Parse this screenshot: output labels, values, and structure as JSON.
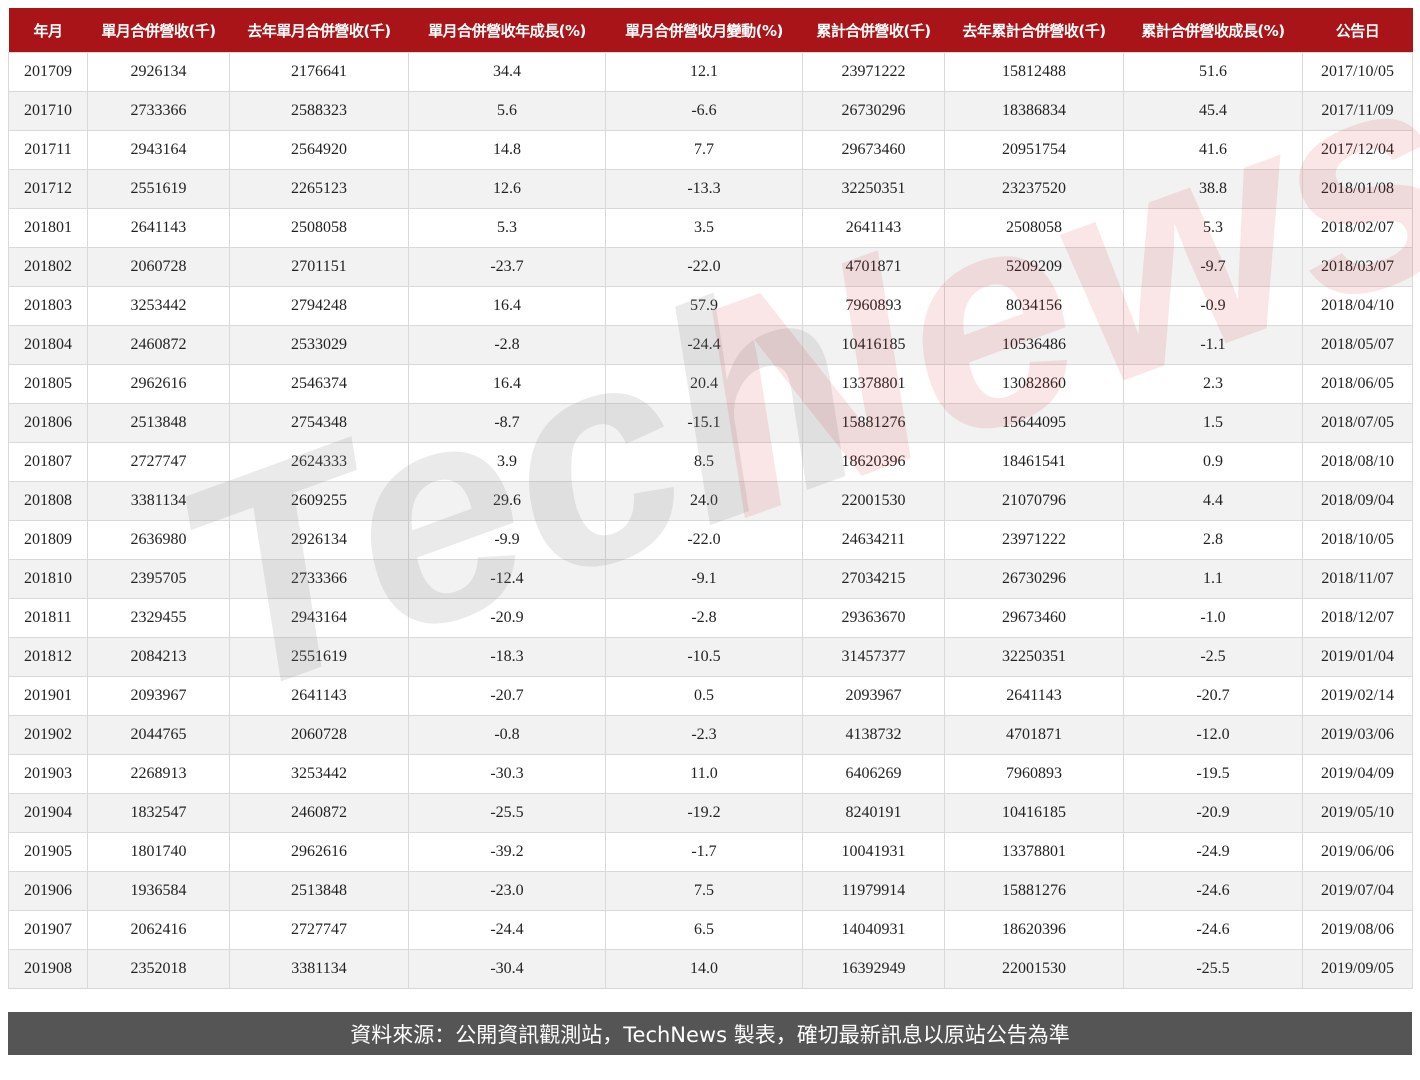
{
  "chart_data": {
    "type": "table",
    "columns": [
      "年月",
      "單月合併營收(千)",
      "去年單月合併營收(千)",
      "單月合併營收年成長(%)",
      "單月合併營收月變動(%)",
      "累計合併營收(千)",
      "去年累計合併營收(千)",
      "累計合併營收成長(%)",
      "公告日"
    ],
    "rows": [
      [
        "201709",
        "2926134",
        "2176641",
        "34.4",
        "12.1",
        "23971222",
        "15812488",
        "51.6",
        "2017/10/05"
      ],
      [
        "201710",
        "2733366",
        "2588323",
        "5.6",
        "-6.6",
        "26730296",
        "18386834",
        "45.4",
        "2017/11/09"
      ],
      [
        "201711",
        "2943164",
        "2564920",
        "14.8",
        "7.7",
        "29673460",
        "20951754",
        "41.6",
        "2017/12/04"
      ],
      [
        "201712",
        "2551619",
        "2265123",
        "12.6",
        "-13.3",
        "32250351",
        "23237520",
        "38.8",
        "2018/01/08"
      ],
      [
        "201801",
        "2641143",
        "2508058",
        "5.3",
        "3.5",
        "2641143",
        "2508058",
        "5.3",
        "2018/02/07"
      ],
      [
        "201802",
        "2060728",
        "2701151",
        "-23.7",
        "-22.0",
        "4701871",
        "5209209",
        "-9.7",
        "2018/03/07"
      ],
      [
        "201803",
        "3253442",
        "2794248",
        "16.4",
        "57.9",
        "7960893",
        "8034156",
        "-0.9",
        "2018/04/10"
      ],
      [
        "201804",
        "2460872",
        "2533029",
        "-2.8",
        "-24.4",
        "10416185",
        "10536486",
        "-1.1",
        "2018/05/07"
      ],
      [
        "201805",
        "2962616",
        "2546374",
        "16.4",
        "20.4",
        "13378801",
        "13082860",
        "2.3",
        "2018/06/05"
      ],
      [
        "201806",
        "2513848",
        "2754348",
        "-8.7",
        "-15.1",
        "15881276",
        "15644095",
        "1.5",
        "2018/07/05"
      ],
      [
        "201807",
        "2727747",
        "2624333",
        "3.9",
        "8.5",
        "18620396",
        "18461541",
        "0.9",
        "2018/08/10"
      ],
      [
        "201808",
        "3381134",
        "2609255",
        "29.6",
        "24.0",
        "22001530",
        "21070796",
        "4.4",
        "2018/09/04"
      ],
      [
        "201809",
        "2636980",
        "2926134",
        "-9.9",
        "-22.0",
        "24634211",
        "23971222",
        "2.8",
        "2018/10/05"
      ],
      [
        "201810",
        "2395705",
        "2733366",
        "-12.4",
        "-9.1",
        "27034215",
        "26730296",
        "1.1",
        "2018/11/07"
      ],
      [
        "201811",
        "2329455",
        "2943164",
        "-20.9",
        "-2.8",
        "29363670",
        "29673460",
        "-1.0",
        "2018/12/07"
      ],
      [
        "201812",
        "2084213",
        "2551619",
        "-18.3",
        "-10.5",
        "31457377",
        "32250351",
        "-2.5",
        "2019/01/04"
      ],
      [
        "201901",
        "2093967",
        "2641143",
        "-20.7",
        "0.5",
        "2093967",
        "2641143",
        "-20.7",
        "2019/02/14"
      ],
      [
        "201902",
        "2044765",
        "2060728",
        "-0.8",
        "-2.3",
        "4138732",
        "4701871",
        "-12.0",
        "2019/03/06"
      ],
      [
        "201903",
        "2268913",
        "3253442",
        "-30.3",
        "11.0",
        "6406269",
        "7960893",
        "-19.5",
        "2019/04/09"
      ],
      [
        "201904",
        "1832547",
        "2460872",
        "-25.5",
        "-19.2",
        "8240191",
        "10416185",
        "-20.9",
        "2019/05/10"
      ],
      [
        "201905",
        "1801740",
        "2962616",
        "-39.2",
        "-1.7",
        "10041931",
        "13378801",
        "-24.9",
        "2019/06/06"
      ],
      [
        "201906",
        "1936584",
        "2513848",
        "-23.0",
        "7.5",
        "11979914",
        "15881276",
        "-24.6",
        "2019/07/04"
      ],
      [
        "201907",
        "2062416",
        "2727747",
        "-24.4",
        "6.5",
        "14040931",
        "18620396",
        "-24.6",
        "2019/08/06"
      ],
      [
        "201908",
        "2352018",
        "3381134",
        "-30.4",
        "14.0",
        "16392949",
        "22001530",
        "-25.5",
        "2019/09/05"
      ]
    ]
  },
  "colors": {
    "header_bg": "#a81417",
    "footer_bg": "#555555",
    "alt_row": "#f2f2f2"
  },
  "watermark": {
    "part1": "Tech",
    "part2": "News"
  },
  "footer": {
    "text": "資料來源：公開資訊觀測站，TechNews 製表，確切最新訊息以原站公告為準"
  }
}
